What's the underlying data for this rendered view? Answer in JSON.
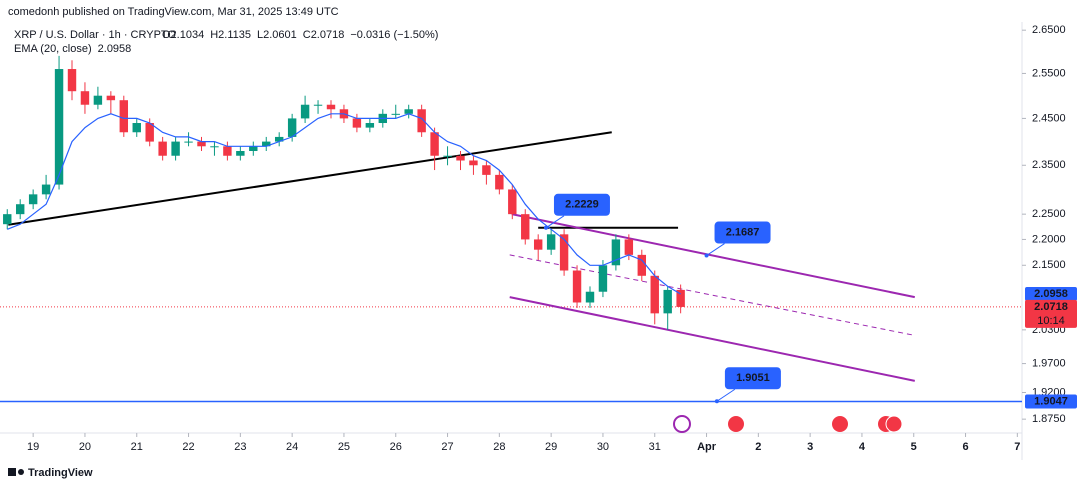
{
  "header": {
    "published": "comedonh published on TradingView.com, Mar 31, 2025 13:49 UTC",
    "footer": "TradingView"
  },
  "chart_data": {
    "type": "candlestick",
    "symbol": "XRP / U.S. Dollar · 1h · CRYPTO",
    "ohlc_legend": [
      "O2.1034",
      "H2.1135",
      "L2.0601",
      "C2.0718",
      "−0.0316 (−1.50%)"
    ],
    "ema_legend": "EMA (20, close)",
    "x": [
      18.5,
      18.75,
      19,
      19.25,
      19.5,
      19.75,
      20,
      20.25,
      20.5,
      20.75,
      21,
      21.25,
      21.5,
      21.75,
      22,
      22.25,
      22.5,
      22.75,
      23,
      23.25,
      23.5,
      23.75,
      24,
      24.25,
      24.5,
      24.75,
      25,
      25.25,
      25.5,
      25.75,
      26,
      26.25,
      26.5,
      26.75,
      27,
      27.25,
      27.5,
      27.75,
      28,
      28.25,
      28.5,
      28.75,
      29,
      29.25,
      29.5,
      29.75,
      30,
      30.25,
      30.5,
      30.75,
      31,
      31.25,
      31.5
    ],
    "open": [
      2.23,
      2.25,
      2.27,
      2.29,
      2.31,
      2.56,
      2.51,
      2.48,
      2.5,
      2.49,
      2.42,
      2.44,
      2.4,
      2.37,
      2.4,
      2.4,
      2.39,
      2.39,
      2.37,
      2.38,
      2.39,
      2.4,
      2.41,
      2.45,
      2.48,
      2.48,
      2.47,
      2.45,
      2.43,
      2.44,
      2.46,
      2.46,
      2.47,
      2.42,
      2.37,
      2.37,
      2.36,
      2.35,
      2.33,
      2.3,
      2.25,
      2.2,
      2.18,
      2.21,
      2.14,
      2.08,
      2.1,
      2.15,
      2.2,
      2.17,
      2.13,
      2.06,
      2.1034
    ],
    "high": [
      2.26,
      2.28,
      2.3,
      2.33,
      2.59,
      2.58,
      2.53,
      2.52,
      2.51,
      2.5,
      2.45,
      2.45,
      2.41,
      2.41,
      2.42,
      2.41,
      2.4,
      2.4,
      2.39,
      2.4,
      2.41,
      2.42,
      2.46,
      2.5,
      2.49,
      2.49,
      2.48,
      2.46,
      2.45,
      2.47,
      2.48,
      2.48,
      2.48,
      2.43,
      2.39,
      2.38,
      2.37,
      2.36,
      2.34,
      2.31,
      2.26,
      2.21,
      2.22,
      2.22,
      2.15,
      2.11,
      2.16,
      2.21,
      2.21,
      2.18,
      2.14,
      2.11,
      2.1135
    ],
    "low": [
      2.22,
      2.24,
      2.26,
      2.28,
      2.3,
      2.49,
      2.46,
      2.47,
      2.46,
      2.41,
      2.41,
      2.39,
      2.36,
      2.36,
      2.39,
      2.38,
      2.37,
      2.36,
      2.36,
      2.37,
      2.38,
      2.39,
      2.4,
      2.44,
      2.46,
      2.45,
      2.44,
      2.42,
      2.42,
      2.43,
      2.45,
      2.45,
      2.41,
      2.34,
      2.35,
      2.34,
      2.33,
      2.31,
      2.29,
      2.24,
      2.19,
      2.16,
      2.17,
      2.13,
      2.07,
      2.07,
      2.09,
      2.14,
      2.16,
      2.12,
      2.04,
      2.03,
      2.0601
    ],
    "close": [
      2.25,
      2.27,
      2.29,
      2.31,
      2.56,
      2.51,
      2.48,
      2.5,
      2.49,
      2.42,
      2.44,
      2.4,
      2.37,
      2.4,
      2.4,
      2.39,
      2.39,
      2.37,
      2.38,
      2.39,
      2.4,
      2.41,
      2.45,
      2.48,
      2.48,
      2.47,
      2.45,
      2.43,
      2.44,
      2.46,
      2.46,
      2.47,
      2.42,
      2.37,
      2.37,
      2.36,
      2.35,
      2.33,
      2.3,
      2.25,
      2.2,
      2.18,
      2.21,
      2.14,
      2.08,
      2.1,
      2.15,
      2.2,
      2.17,
      2.13,
      2.06,
      2.1034,
      2.0718
    ],
    "ema": [
      2.22,
      2.23,
      2.25,
      2.27,
      2.33,
      2.4,
      2.43,
      2.45,
      2.46,
      2.45,
      2.45,
      2.44,
      2.42,
      2.41,
      2.41,
      2.4,
      2.4,
      2.39,
      2.39,
      2.39,
      2.39,
      2.4,
      2.41,
      2.43,
      2.45,
      2.46,
      2.46,
      2.45,
      2.45,
      2.45,
      2.45,
      2.46,
      2.45,
      2.42,
      2.4,
      2.39,
      2.37,
      2.36,
      2.34,
      2.31,
      2.27,
      2.24,
      2.22,
      2.2,
      2.17,
      2.15,
      2.15,
      2.16,
      2.17,
      2.16,
      2.13,
      2.11,
      2.0958
    ],
    "up_color": "#089981",
    "down_color": "#f23645",
    "ema_color": "#2962ff",
    "xlim": [
      18.36,
      38.09
    ],
    "xticks": [
      19,
      20,
      21,
      22,
      23,
      24,
      25,
      26,
      27,
      28,
      29,
      30,
      31,
      {
        "value": 32,
        "label": "Apr"
      },
      {
        "value": 33,
        "label": "2"
      },
      {
        "value": 34,
        "label": "3"
      },
      {
        "value": 35,
        "label": "4"
      },
      {
        "value": 36,
        "label": "5"
      },
      {
        "value": 37,
        "label": "6"
      },
      {
        "value": 38,
        "label": "7"
      }
    ],
    "ylim": [
      1.857,
      2.698
    ],
    "log_scale": true,
    "yticks": [
      {
        "value": 2.65,
        "label": "2.6500"
      },
      {
        "value": 2.55,
        "label": "2.5500"
      },
      {
        "value": 2.45,
        "label": "2.4500"
      },
      {
        "value": 2.35,
        "label": "2.3500"
      },
      {
        "value": 2.25,
        "label": "2.2500"
      },
      {
        "value": 2.2,
        "label": "2.2000"
      },
      {
        "value": 2.15,
        "label": "2.1500"
      },
      {
        "value": 2.03,
        "label": "2.0300"
      },
      {
        "value": 1.97,
        "label": "1.9700"
      },
      {
        "value": 1.92,
        "label": "1.9200"
      },
      {
        "value": 1.875,
        "label": "1.8750"
      }
    ],
    "trend_lines": [
      {
        "x": [
          18.52,
          30.17
        ],
        "y": [
          2.229,
          2.42
        ],
        "color": "#000000",
        "dashed": false
      },
      {
        "x": [
          28.75,
          31.45
        ],
        "y": [
          2.2229,
          2.2229
        ],
        "color": "#000000",
        "dashed": false
      },
      {
        "x": [
          28.24,
          36.02
        ],
        "y": [
          2.25,
          2.09
        ],
        "color": "#9c27b0",
        "dashed": false
      },
      {
        "x": [
          28.2,
          36.02
        ],
        "y": [
          2.09,
          1.94
        ],
        "color": "#9c27b0",
        "dashed": false
      },
      {
        "x": [
          28.2,
          36.02
        ],
        "y": [
          2.17,
          2.02
        ],
        "color": "#9c27b0",
        "dashed": true
      }
    ],
    "horizontal_line": {
      "y": 1.9047,
      "color": "#2962ff"
    },
    "annotations": [
      {
        "value": 2.2229,
        "x": 28.9
      },
      {
        "value": 2.1687,
        "x": 32.0
      },
      {
        "value": 1.9051,
        "x": 32.2
      }
    ],
    "price_tags": [
      {
        "value": 2.0958,
        "color": "#2962ff"
      },
      {
        "value": 2.0718,
        "color": "#f23645",
        "countdown": "10:14"
      },
      {
        "value": 1.9047,
        "color": "#2962ff"
      }
    ]
  }
}
